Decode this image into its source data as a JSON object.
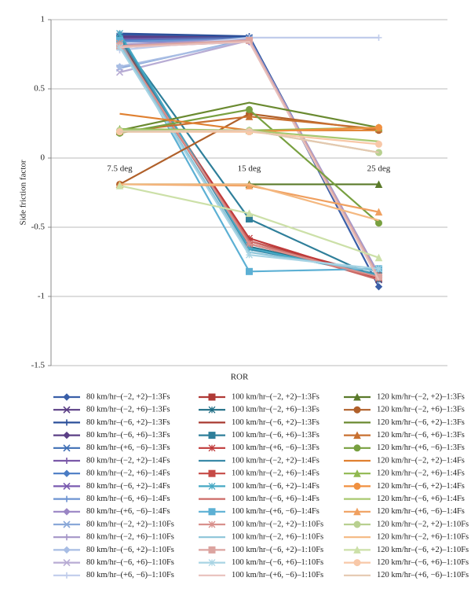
{
  "chart_data": {
    "type": "line",
    "y_label": "Side friction factor",
    "x_label": "ROR",
    "categories": [
      "7.5 deg",
      "15 deg",
      "25 deg"
    ],
    "ylim": [
      -1.5,
      1
    ],
    "yticks": [
      1,
      0.5,
      0,
      -0.5,
      -1,
      -1.5
    ],
    "grid": true,
    "series": [
      {
        "name": "80 km/hr–(−2, +2)–1:3Fs",
        "color": "#3a5fa8",
        "marker": "diamond",
        "values": [
          0.89,
          0.87,
          -0.93
        ]
      },
      {
        "name": "80 km/hr–(−2, +6)–1:3Fs",
        "color": "#5b3f86",
        "marker": "x",
        "values": [
          0.88,
          0.87,
          -0.88
        ]
      },
      {
        "name": "80 km/hr–(−6, +2)–1:3Fs",
        "color": "#2b4f9a",
        "marker": "plus",
        "values": [
          0.9,
          0.88,
          -0.87
        ]
      },
      {
        "name": "80 km/hr–(−6, +6)–1:3Fs",
        "color": "#5b3f86",
        "marker": "diamond",
        "values": [
          0.87,
          0.86,
          -0.86
        ]
      },
      {
        "name": "80 km/hr–(+6, −6)–1:3Fs",
        "color": "#3f6fb5",
        "marker": "x",
        "values": [
          0.86,
          0.87,
          -0.87
        ]
      },
      {
        "name": "80 km/hr–(−2, +2)–1:4Fs",
        "color": "#7a58a8",
        "marker": "plus",
        "values": [
          0.86,
          0.86,
          -0.86
        ]
      },
      {
        "name": "80 km/hr–(−2, +6)–1:4Fs",
        "color": "#4a7cc4",
        "marker": "diamond",
        "values": [
          0.85,
          0.86,
          -0.85
        ]
      },
      {
        "name": "80 km/hr–(−6, +2)–1:4Fs",
        "color": "#7a5bb0",
        "marker": "x",
        "values": [
          0.84,
          0.85,
          -0.86
        ]
      },
      {
        "name": "80 km/hr–(−6, +6)–1:4Fs",
        "color": "#6d93d2",
        "marker": "plus",
        "values": [
          0.84,
          0.86,
          -0.88
        ]
      },
      {
        "name": "80 km/hr–(+6, −6)–1:4Fs",
        "color": "#9a85c4",
        "marker": "diamond",
        "values": [
          0.8,
          0.84,
          -0.85
        ]
      },
      {
        "name": "80 km/hr–(−2, +2)–1:10Fs",
        "color": "#8aa8d8",
        "marker": "x",
        "values": [
          0.65,
          0.86,
          -0.87
        ]
      },
      {
        "name": "80 km/hr–(−2, +6)–1:10Fs",
        "color": "#a596c8",
        "marker": "plus",
        "values": [
          0.82,
          0.86,
          -0.84
        ]
      },
      {
        "name": "80 km/hr–(−6, +2)–1:10Fs",
        "color": "#a8bde4",
        "marker": "diamond",
        "values": [
          0.66,
          0.85,
          -0.86
        ]
      },
      {
        "name": "80 km/hr–(−6, +6)–1:10Fs",
        "color": "#b8acd4",
        "marker": "x",
        "values": [
          0.62,
          0.85,
          -0.87
        ]
      },
      {
        "name": "80 km/hr–(+6, −6)–1:10Fs",
        "color": "#c0cceb",
        "marker": "plus",
        "values": [
          0.78,
          0.87,
          0.87
        ]
      },
      {
        "name": "100 km/hr–(−2, +2)–1:3Fs",
        "color": "#b03a36",
        "marker": "square",
        "values": [
          0.85,
          -0.6,
          -0.85
        ]
      },
      {
        "name": "100 km/hr–(−2, +6)–1:3Fs",
        "color": "#1f6d84",
        "marker": "asterisk",
        "values": [
          0.84,
          -0.64,
          -0.85
        ]
      },
      {
        "name": "100 km/hr–(−6, +2)–1:3Fs",
        "color": "#a83a30",
        "marker": "none",
        "values": [
          0.83,
          -0.62,
          -0.86
        ]
      },
      {
        "name": "100 km/hr–(−6, +6)–1:3Fs",
        "color": "#2f7f9a",
        "marker": "square",
        "values": [
          0.86,
          -0.44,
          -0.87
        ]
      },
      {
        "name": "100 km/hr–(+6, −6)–1:3Fs",
        "color": "#c03a3a",
        "marker": "asterisk",
        "values": [
          0.82,
          -0.58,
          -0.87
        ]
      },
      {
        "name": "100 km/hr–(−2, +2)–1:4Fs",
        "color": "#3b8aa8",
        "marker": "none",
        "values": [
          0.88,
          -0.66,
          -0.84
        ]
      },
      {
        "name": "100 km/hr–(−2, +6)–1:4Fs",
        "color": "#c64a46",
        "marker": "square",
        "values": [
          0.82,
          -0.62,
          -0.86
        ]
      },
      {
        "name": "100 km/hr–(−6, +2)–1:4Fs",
        "color": "#46a8c4",
        "marker": "asterisk",
        "values": [
          0.9,
          -0.65,
          -0.85
        ]
      },
      {
        "name": "100 km/hr–(−6, +6)–1:4Fs",
        "color": "#cc6a66",
        "marker": "none",
        "values": [
          0.8,
          -0.6,
          -0.88
        ]
      },
      {
        "name": "100 km/hr–(+6, −6)–1:4Fs",
        "color": "#5cb0d4",
        "marker": "square",
        "values": [
          0.85,
          -0.82,
          -0.8
        ]
      },
      {
        "name": "100 km/hr–(−2, +2)–1:10Fs",
        "color": "#d8908c",
        "marker": "asterisk",
        "values": [
          0.83,
          -0.62,
          -0.86
        ]
      },
      {
        "name": "100 km/hr–(−2, +6)–1:10Fs",
        "color": "#8cc4d8",
        "marker": "none",
        "values": [
          0.82,
          -0.68,
          -0.82
        ]
      },
      {
        "name": "100 km/hr–(−6, +2)–1:10Fs",
        "color": "#dca4a0",
        "marker": "square",
        "values": [
          0.81,
          0.85,
          -0.86
        ]
      },
      {
        "name": "100 km/hr–(−6, +6)–1:10Fs",
        "color": "#a8d4e4",
        "marker": "asterisk",
        "values": [
          0.8,
          -0.7,
          -0.8
        ]
      },
      {
        "name": "100 km/hr–(+6, −6)–1:10Fs",
        "color": "#e8c0bc",
        "marker": "none",
        "values": [
          0.8,
          0.84,
          -0.88
        ]
      },
      {
        "name": "120 km/hr–(−2, +2)–1:3Fs",
        "color": "#5a7a2a",
        "marker": "triangle",
        "values": [
          -0.19,
          -0.19,
          -0.19
        ]
      },
      {
        "name": "120 km/hr–(−2, +6)–1:3Fs",
        "color": "#b0602a",
        "marker": "circle",
        "values": [
          -0.19,
          0.32,
          0.2
        ]
      },
      {
        "name": "120 km/hr–(−6, +2)–1:3Fs",
        "color": "#6a8a30",
        "marker": "none",
        "values": [
          0.2,
          0.4,
          0.22
        ]
      },
      {
        "name": "120 km/hr–(−6, +6)–1:3Fs",
        "color": "#c87030",
        "marker": "triangle",
        "values": [
          0.19,
          0.3,
          0.21
        ]
      },
      {
        "name": "120 km/hr–(+6, −6)–1:3Fs",
        "color": "#78a040",
        "marker": "circle",
        "values": [
          0.18,
          0.35,
          -0.47
        ]
      },
      {
        "name": "120 km/hr–(−2, +2)–1:4Fs",
        "color": "#e08030",
        "marker": "none",
        "values": [
          0.32,
          0.2,
          0.2
        ]
      },
      {
        "name": "120 km/hr–(−2, +6)–1:4Fs",
        "color": "#90b850",
        "marker": "triangle",
        "values": [
          0.21,
          0.2,
          0.22
        ]
      },
      {
        "name": "120 km/hr–(−6, +2)–1:4Fs",
        "color": "#f09040",
        "marker": "circle",
        "values": [
          0.19,
          0.19,
          0.22
        ]
      },
      {
        "name": "120 km/hr–(−6, +6)–1:4Fs",
        "color": "#a8c870",
        "marker": "none",
        "values": [
          0.2,
          0.2,
          0.12
        ]
      },
      {
        "name": "120 km/hr–(+6, −6)–1:4Fs",
        "color": "#f0a060",
        "marker": "triangle",
        "values": [
          -0.19,
          -0.2,
          -0.39
        ]
      },
      {
        "name": "120 km/hr–(−2, +2)–1:10Fs",
        "color": "#b8d090",
        "marker": "circle",
        "values": [
          0.2,
          0.2,
          0.04
        ]
      },
      {
        "name": "120 km/hr–(−2, +6)–1:10Fs",
        "color": "#f4b880",
        "marker": "none",
        "values": [
          -0.19,
          -0.19,
          -0.45
        ]
      },
      {
        "name": "120 km/hr–(−6, +2)–1:10Fs",
        "color": "#cce0a8",
        "marker": "triangle",
        "values": [
          -0.2,
          -0.4,
          -0.72
        ]
      },
      {
        "name": "120 km/hr–(−6, +6)–1:10Fs",
        "color": "#f8c8a8",
        "marker": "circle",
        "values": [
          0.19,
          0.19,
          0.1
        ]
      },
      {
        "name": "120 km/hr–(+6, −6)–1:10Fs",
        "color": "#e4c8b0",
        "marker": "none",
        "values": [
          0.19,
          0.2,
          0.04
        ]
      }
    ]
  }
}
